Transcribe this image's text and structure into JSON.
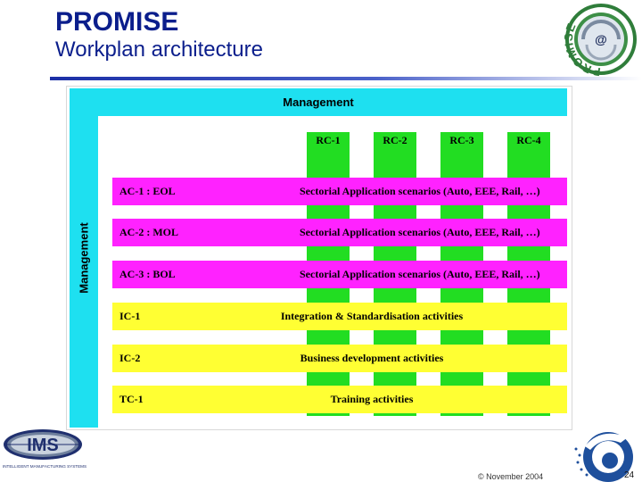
{
  "header": {
    "title": "PROMISE",
    "subtitle": "Workplan architecture"
  },
  "logo": {
    "ring_text": "PROMISE",
    "center_text": "@"
  },
  "diagram": {
    "management_top": "Management",
    "management_side": "Management",
    "rc_columns": [
      "RC-1",
      "RC-2",
      "RC-3",
      "RC-4"
    ],
    "rows": [
      {
        "code": "AC-1 : EOL",
        "description": "Sectorial Application scenarios (Auto, EEE, Rail, …)",
        "color": "#ff22ff"
      },
      {
        "code": "AC-2 : MOL",
        "description": "Sectorial Application scenarios (Auto, EEE, Rail, …)",
        "color": "#ff22ff"
      },
      {
        "code": "AC-3 : BOL",
        "description": "Sectorial Application scenarios (Auto, EEE, Rail, …)",
        "color": "#ff22ff"
      },
      {
        "code": "IC-1",
        "description": "Integration & Standardisation activities",
        "color": "#ffff33"
      },
      {
        "code": "IC-2",
        "description": "Business development activities",
        "color": "#ffff33"
      },
      {
        "code": "TC-1",
        "description": "Training activities",
        "color": "#ffff33"
      }
    ],
    "colors": {
      "management": "#1ee0f0",
      "rc": "#22dd22",
      "application": "#ff22ff",
      "horizontal": "#ffff33"
    }
  },
  "ims_logo": {
    "text": "IMS",
    "caption": "INTELLIGENT MANUFACTURING SYSTEMS"
  },
  "footer": {
    "date": "© November 2004",
    "page": "24"
  }
}
